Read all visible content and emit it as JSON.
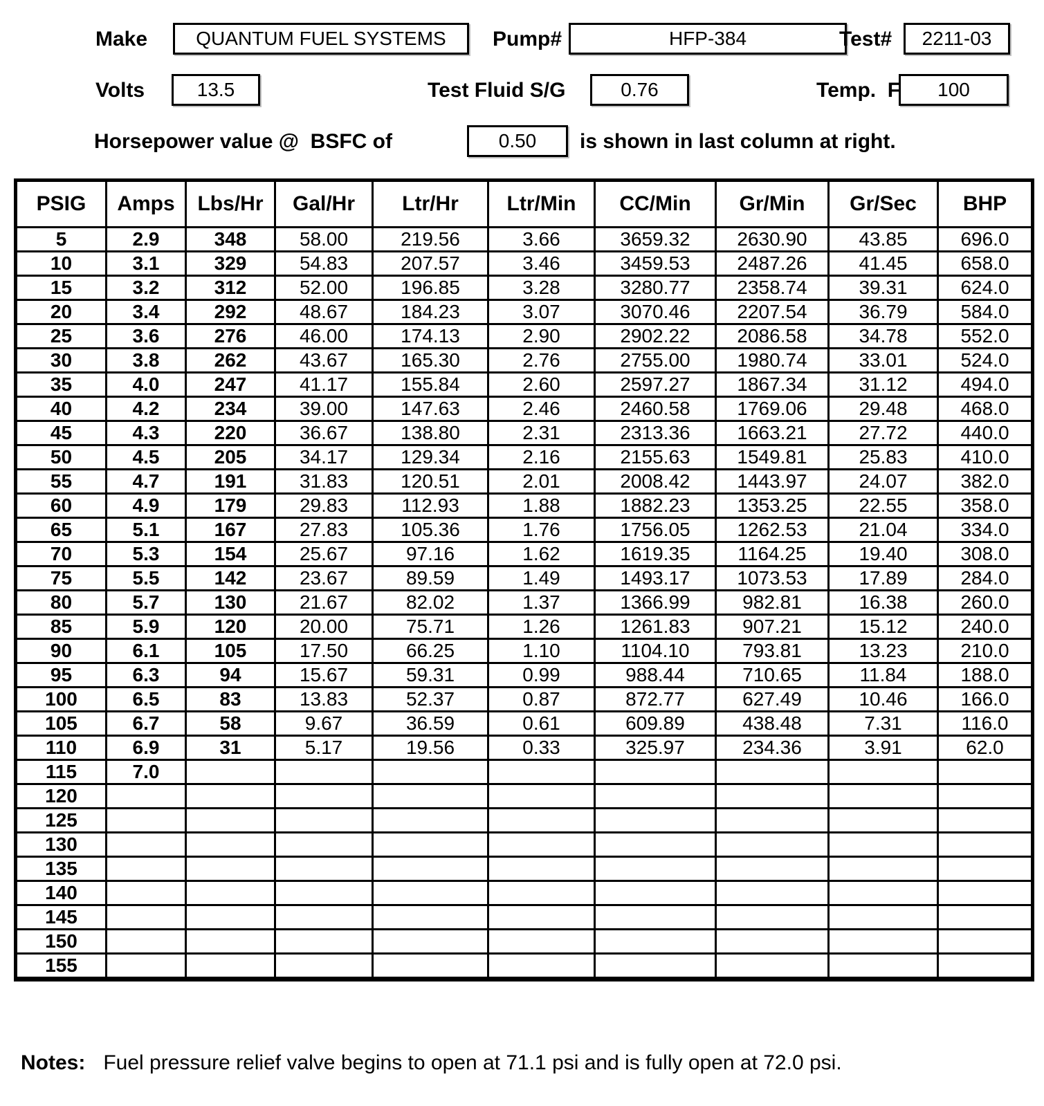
{
  "header": {
    "make_label": "Make",
    "make_value": "QUANTUM FUEL SYSTEMS",
    "pump_label": "Pump#",
    "pump_value": "HFP-384",
    "test_label": "Test#",
    "test_value": "2211-03",
    "volts_label": "Volts",
    "volts_value": "13.5",
    "fluid_sg_label": "Test Fluid S/G",
    "fluid_sg_value": "0.76",
    "temp_label": "Temp.  F",
    "temp_value": "100",
    "hp_prefix": "Horsepower value @  BSFC of",
    "bsfc_value": "0.50",
    "hp_suffix": "is shown in last column at right."
  },
  "table": {
    "columns": [
      "PSIG",
      "Amps",
      "Lbs/Hr",
      "Gal/Hr",
      "Ltr/Hr",
      "Ltr/Min",
      "CC/Min",
      "Gr/Min",
      "Gr/Sec",
      "BHP"
    ],
    "bold_columns": 3,
    "rows": [
      [
        "5",
        "2.9",
        "348",
        "58.00",
        "219.56",
        "3.66",
        "3659.32",
        "2630.90",
        "43.85",
        "696.0"
      ],
      [
        "10",
        "3.1",
        "329",
        "54.83",
        "207.57",
        "3.46",
        "3459.53",
        "2487.26",
        "41.45",
        "658.0"
      ],
      [
        "15",
        "3.2",
        "312",
        "52.00",
        "196.85",
        "3.28",
        "3280.77",
        "2358.74",
        "39.31",
        "624.0"
      ],
      [
        "20",
        "3.4",
        "292",
        "48.67",
        "184.23",
        "3.07",
        "3070.46",
        "2207.54",
        "36.79",
        "584.0"
      ],
      [
        "25",
        "3.6",
        "276",
        "46.00",
        "174.13",
        "2.90",
        "2902.22",
        "2086.58",
        "34.78",
        "552.0"
      ],
      [
        "30",
        "3.8",
        "262",
        "43.67",
        "165.30",
        "2.76",
        "2755.00",
        "1980.74",
        "33.01",
        "524.0"
      ],
      [
        "35",
        "4.0",
        "247",
        "41.17",
        "155.84",
        "2.60",
        "2597.27",
        "1867.34",
        "31.12",
        "494.0"
      ],
      [
        "40",
        "4.2",
        "234",
        "39.00",
        "147.63",
        "2.46",
        "2460.58",
        "1769.06",
        "29.48",
        "468.0"
      ],
      [
        "45",
        "4.3",
        "220",
        "36.67",
        "138.80",
        "2.31",
        "2313.36",
        "1663.21",
        "27.72",
        "440.0"
      ],
      [
        "50",
        "4.5",
        "205",
        "34.17",
        "129.34",
        "2.16",
        "2155.63",
        "1549.81",
        "25.83",
        "410.0"
      ],
      [
        "55",
        "4.7",
        "191",
        "31.83",
        "120.51",
        "2.01",
        "2008.42",
        "1443.97",
        "24.07",
        "382.0"
      ],
      [
        "60",
        "4.9",
        "179",
        "29.83",
        "112.93",
        "1.88",
        "1882.23",
        "1353.25",
        "22.55",
        "358.0"
      ],
      [
        "65",
        "5.1",
        "167",
        "27.83",
        "105.36",
        "1.76",
        "1756.05",
        "1262.53",
        "21.04",
        "334.0"
      ],
      [
        "70",
        "5.3",
        "154",
        "25.67",
        "97.16",
        "1.62",
        "1619.35",
        "1164.25",
        "19.40",
        "308.0"
      ],
      [
        "75",
        "5.5",
        "142",
        "23.67",
        "89.59",
        "1.49",
        "1493.17",
        "1073.53",
        "17.89",
        "284.0"
      ],
      [
        "80",
        "5.7",
        "130",
        "21.67",
        "82.02",
        "1.37",
        "1366.99",
        "982.81",
        "16.38",
        "260.0"
      ],
      [
        "85",
        "5.9",
        "120",
        "20.00",
        "75.71",
        "1.26",
        "1261.83",
        "907.21",
        "15.12",
        "240.0"
      ],
      [
        "90",
        "6.1",
        "105",
        "17.50",
        "66.25",
        "1.10",
        "1104.10",
        "793.81",
        "13.23",
        "210.0"
      ],
      [
        "95",
        "6.3",
        "94",
        "15.67",
        "59.31",
        "0.99",
        "988.44",
        "710.65",
        "11.84",
        "188.0"
      ],
      [
        "100",
        "6.5",
        "83",
        "13.83",
        "52.37",
        "0.87",
        "872.77",
        "627.49",
        "10.46",
        "166.0"
      ],
      [
        "105",
        "6.7",
        "58",
        "9.67",
        "36.59",
        "0.61",
        "609.89",
        "438.48",
        "7.31",
        "116.0"
      ],
      [
        "110",
        "6.9",
        "31",
        "5.17",
        "19.56",
        "0.33",
        "325.97",
        "234.36",
        "3.91",
        "62.0"
      ],
      [
        "115",
        "7.0",
        "",
        "",
        "",
        "",
        "",
        "",
        "",
        ""
      ],
      [
        "120",
        "",
        "",
        "",
        "",
        "",
        "",
        "",
        "",
        ""
      ],
      [
        "125",
        "",
        "",
        "",
        "",
        "",
        "",
        "",
        "",
        ""
      ],
      [
        "130",
        "",
        "",
        "",
        "",
        "",
        "",
        "",
        "",
        ""
      ],
      [
        "135",
        "",
        "",
        "",
        "",
        "",
        "",
        "",
        "",
        ""
      ],
      [
        "140",
        "",
        "",
        "",
        "",
        "",
        "",
        "",
        "",
        ""
      ],
      [
        "145",
        "",
        "",
        "",
        "",
        "",
        "",
        "",
        "",
        ""
      ],
      [
        "150",
        "",
        "",
        "",
        "",
        "",
        "",
        "",
        "",
        ""
      ],
      [
        "155",
        "",
        "",
        "",
        "",
        "",
        "",
        "",
        "",
        ""
      ]
    ]
  },
  "notes": {
    "label": "Notes:",
    "text": "Fuel pressure relief valve begins to open at 71.1 psi and is fully open at 72.0 psi."
  }
}
